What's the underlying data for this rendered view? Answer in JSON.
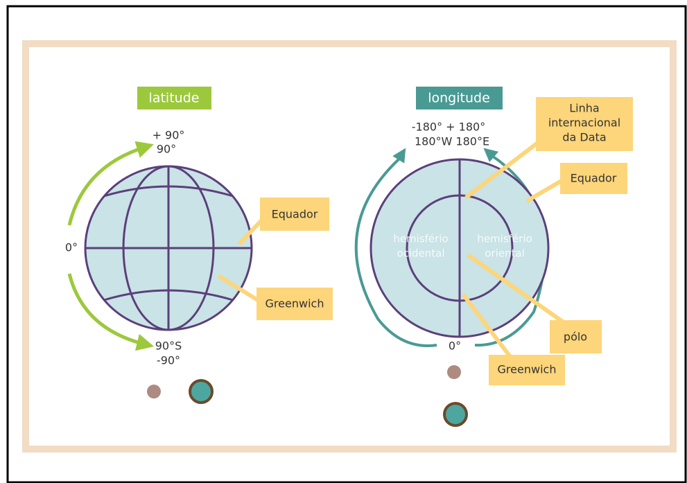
{
  "latitude": {
    "title": "latitude",
    "top_labels": [
      "+ 90°",
      "90°"
    ],
    "middle_label": "0°",
    "bottom_labels": [
      "90°S",
      "-90°"
    ],
    "callouts": [
      "Equador",
      "Greenwich"
    ]
  },
  "longitude": {
    "title": "longitude",
    "top_labels": [
      "-180° + 180°",
      "180°W 180°E"
    ],
    "date_line": [
      "Linha",
      "internacional",
      "da Data"
    ],
    "equator": "Equador",
    "hemispheres": [
      [
        "hemisfério",
        "ocidental"
      ],
      [
        "hemisfério",
        "oriental"
      ]
    ],
    "pole": "pólo",
    "bottom_label": "0°",
    "greenwich": "Greenwich"
  }
}
